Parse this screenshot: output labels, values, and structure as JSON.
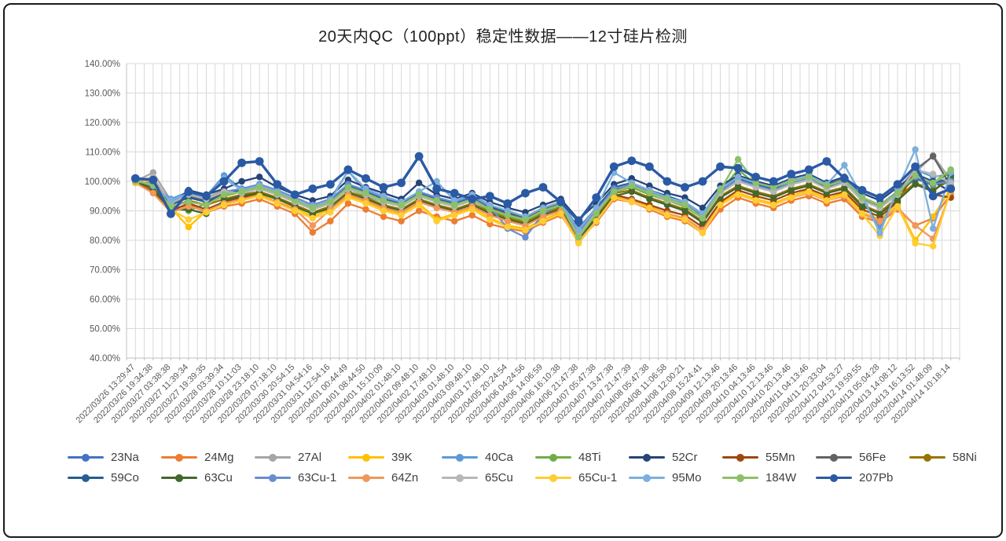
{
  "window": {
    "background": "#FFFFFF",
    "border_color": "#1A1A1A"
  },
  "chart_data": {
    "type": "line",
    "title": "20天内QC（100ppt）稳定性数据——12寸硅片检测",
    "xlabel": "",
    "ylabel": "",
    "ylim": [
      40,
      140
    ],
    "ytick_step": 10,
    "ytick_labels": [
      "140.00%",
      "130.00%",
      "120.00%",
      "110.00%",
      "100.00%",
      "90.00%",
      "80.00%",
      "70.00%",
      "60.00%",
      "50.00%",
      "40.00%"
    ],
    "grid": true,
    "grid_color": "#D9D9D9",
    "axis_color": "#BFBFBF",
    "tick_label_color": "#595959",
    "legend_position": "bottom",
    "categories": [
      "2022/03/26 13:29:47",
      "2022/03/26 19:34:38",
      "2022/03/27 03:38:38",
      "2022/03/27 11:39:34",
      "2022/03/27 19:39:35",
      "2022/03/28 03:39:34",
      "2022/03/28 10:11:03",
      "2022/03/28 23:18:10",
      "2022/03/29 07:18:10",
      "2022/03/30 20:54:15",
      "2022/03/31 04:54:16",
      "2022/03/31 12:54:16",
      "2022/04/01 00:44:49",
      "2022/04/01 08:44:50",
      "2022/04/01 15:10:09",
      "2022/04/02 01:48:10",
      "2022/04/02 09:48:10",
      "2022/04/02 17:48:10",
      "2022/04/03 01:48:10",
      "2022/04/03 09:48:10",
      "2022/04/03 17:48:10",
      "2022/04/05 20:24:54",
      "2022/04/06 04:24:56",
      "2022/04/06 14:06:59",
      "2022/04/06 16:10:38",
      "2022/04/06 21:47:38",
      "2022/04/07 05:47:38",
      "2022/04/07 13:47:38",
      "2022/04/07 21:47:39",
      "2022/04/08 05:47:38",
      "2022/04/08 11:06:58",
      "2022/04/08 12:00:21",
      "2022/04/08 15:24:41",
      "2022/04/09 12:13:46",
      "2022/04/09 20:13:46",
      "2022/04/10 04:13:46",
      "2022/04/10 12:13:46",
      "2022/04/10 20:13:46",
      "2022/04/11 04:13:46",
      "2022/04/11 20:33:04",
      "2022/04/12 04:53:27",
      "2022/04/12 19:59:55",
      "2022/04/13 05:04:28",
      "2022/04/13 14:08:12",
      "2022/04/13 16:13:52",
      "2022/04/14 01:48:09",
      "2022/04/14 10:18:14"
    ],
    "series": [
      {
        "name": "23Na",
        "color": "#4472C4",
        "values": [
          100.5,
          101,
          92.5,
          95,
          93.5,
          96,
          97,
          98.5,
          96.5,
          94,
          91.5,
          93.5,
          98.5,
          96.5,
          94,
          92.5,
          96,
          94,
          92.5,
          94.5,
          91,
          89,
          87.5,
          90.5,
          92.5,
          82,
          89.5,
          97,
          98.5,
          96,
          94,
          92,
          88,
          96.5,
          100.5,
          98.5,
          97,
          99.5,
          101,
          98.5,
          100,
          94,
          91.5,
          96,
          101.5,
          99,
          100.5
        ]
      },
      {
        "name": "24Mg",
        "color": "#ED7D31",
        "values": [
          99.5,
          97,
          90.5,
          92,
          89.5,
          91.5,
          92.5,
          94,
          91.5,
          89,
          82.7,
          86.5,
          92.5,
          90.5,
          88,
          86.5,
          90,
          88,
          86.5,
          88.5,
          85.5,
          84,
          83,
          86,
          88.5,
          80,
          86,
          94,
          93,
          90.5,
          88,
          86.5,
          82.5,
          90.5,
          94.5,
          92.5,
          91,
          93.5,
          95,
          92.5,
          94,
          88,
          86,
          90.5,
          85,
          87.5,
          95.5
        ]
      },
      {
        "name": "27Al",
        "color": "#A5A5A5",
        "values": [
          100,
          103,
          93.5,
          96,
          94.5,
          97,
          96,
          97.5,
          95.5,
          93,
          90.5,
          92.5,
          97.5,
          95.5,
          93,
          91.5,
          95,
          93,
          91.5,
          93.5,
          90,
          88.5,
          87,
          90,
          92,
          82,
          89.5,
          96.5,
          98,
          95.5,
          93.5,
          91.5,
          87.5,
          96,
          100.5,
          98,
          96.5,
          99,
          101,
          98,
          100,
          94,
          91.5,
          96,
          103,
          108.8,
          100.5
        ]
      },
      {
        "name": "39K",
        "color": "#FFC000",
        "values": [
          99.5,
          101.5,
          91,
          84.5,
          90,
          92.5,
          94,
          95.5,
          93,
          91,
          88,
          90.5,
          95,
          93,
          90.5,
          89,
          92.5,
          87,
          89,
          91,
          87.5,
          85,
          84,
          87,
          89.5,
          79.5,
          87,
          95,
          93.5,
          91.5,
          89,
          87.5,
          83,
          92.5,
          96,
          94,
          92.5,
          95,
          97,
          94,
          96,
          89.5,
          87,
          92,
          80,
          88,
          97.5
        ]
      },
      {
        "name": "40Ca",
        "color": "#5B9BD5",
        "values": [
          100.5,
          99,
          94,
          96.5,
          95,
          102,
          97.5,
          99,
          97,
          94.5,
          92,
          94,
          103.5,
          96.5,
          94.5,
          92.5,
          96,
          94,
          92,
          94.5,
          91,
          89,
          87.5,
          90.5,
          92.5,
          83,
          90.5,
          97.5,
          99.5,
          96.5,
          94,
          92.5,
          88.5,
          97,
          101,
          99,
          97,
          100,
          102,
          98.5,
          101,
          95,
          84,
          97,
          104,
          101.5,
          102.5
        ]
      },
      {
        "name": "48Ti",
        "color": "#70AD47",
        "values": [
          100,
          98.5,
          91,
          90,
          92.5,
          95,
          96.5,
          97.5,
          95.5,
          93,
          90.5,
          92.5,
          97.5,
          95,
          93,
          91.5,
          95,
          93,
          91.5,
          93.5,
          90,
          88,
          86.5,
          89.5,
          91.5,
          81.5,
          89,
          96.5,
          98,
          95.5,
          93.5,
          91.5,
          87.5,
          96.5,
          104,
          99,
          97.5,
          99.5,
          101,
          98,
          100,
          94,
          91,
          95.5,
          101,
          98.5,
          103.5
        ]
      },
      {
        "name": "52Cr",
        "color": "#264478",
        "values": [
          100.5,
          101,
          92,
          97,
          95.5,
          97.5,
          100,
          101.5,
          98,
          95.5,
          93.5,
          95,
          100.5,
          98,
          96,
          94,
          99.5,
          95.5,
          94,
          96,
          93,
          91,
          89.5,
          92,
          94,
          87,
          92.5,
          99,
          101,
          98.5,
          96,
          94.5,
          91,
          98.5,
          102,
          100,
          98.5,
          101,
          102.5,
          99.5,
          101.5,
          96,
          93.5,
          98,
          102.5,
          100,
          96.5
        ]
      },
      {
        "name": "55Mn",
        "color": "#9E480E",
        "values": [
          99.5,
          96.5,
          90,
          92.5,
          90.5,
          93,
          94.5,
          96,
          94,
          91.5,
          89,
          91,
          96,
          94,
          91.5,
          90,
          93.5,
          91.5,
          90,
          92,
          89,
          87,
          85.5,
          88.5,
          90.5,
          81,
          88,
          95.5,
          94,
          92,
          90,
          88.5,
          84.5,
          93,
          97,
          95,
          93.5,
          96,
          97.5,
          95,
          96.5,
          90.5,
          88,
          93,
          103.5,
          95.5,
          94.5
        ]
      },
      {
        "name": "56Fe",
        "color": "#636363",
        "values": [
          100,
          99.5,
          92.5,
          95,
          93.5,
          96,
          97,
          98,
          96,
          94,
          91.5,
          93.5,
          98,
          96,
          93.5,
          92,
          95.5,
          93.5,
          92,
          94,
          91,
          89,
          87.5,
          90.5,
          92.5,
          82.5,
          90,
          97,
          98.5,
          96,
          94,
          92,
          88,
          96.5,
          100.5,
          98.5,
          97,
          99,
          100.5,
          98,
          99.5,
          93.5,
          91,
          96,
          104,
          108.5,
          98.5
        ]
      },
      {
        "name": "58Ni",
        "color": "#997300",
        "values": [
          99.5,
          98,
          91,
          93.5,
          92,
          94,
          95.5,
          96.5,
          94.5,
          92,
          89.5,
          91.5,
          96.5,
          94.5,
          92,
          90.5,
          94,
          92,
          90.5,
          92.5,
          89.5,
          87.5,
          86,
          89,
          91,
          81.5,
          88.5,
          96,
          97,
          94.5,
          92.5,
          90.5,
          86.5,
          95,
          98.5,
          96.5,
          95,
          97.5,
          99,
          96.5,
          98,
          92,
          89.5,
          94.5,
          99.5,
          97,
          100.5
        ]
      },
      {
        "name": "59Co",
        "color": "#255E91",
        "values": [
          100.5,
          100,
          92,
          94.5,
          93,
          95.5,
          97,
          98.5,
          96.5,
          94,
          91.5,
          93.5,
          98.5,
          96.5,
          94,
          92.5,
          96,
          94,
          92.5,
          94.5,
          91.5,
          89.5,
          88,
          91,
          93,
          84,
          91,
          98,
          99.5,
          97,
          95,
          93,
          89,
          97.5,
          101,
          99,
          97.5,
          100,
          101.5,
          99,
          100.5,
          94.5,
          92,
          96.5,
          101,
          99,
          101.5
        ]
      },
      {
        "name": "63Cu",
        "color": "#43682B",
        "values": [
          100,
          97.5,
          90.5,
          90.5,
          89,
          93.5,
          95,
          96,
          94,
          91.5,
          89,
          91,
          96,
          94,
          91.5,
          90,
          93.5,
          91.5,
          90,
          92,
          89,
          87,
          85.5,
          88.5,
          90.5,
          80.5,
          87.5,
          95,
          96.5,
          94,
          92,
          90,
          86,
          94.5,
          98,
          96,
          94.5,
          97,
          98.5,
          96,
          97.5,
          91.5,
          89,
          93.5,
          99,
          96.5,
          102
        ]
      },
      {
        "name": "63Cu-1",
        "color": "#698ED0",
        "values": [
          100.5,
          99.5,
          93,
          95.5,
          94,
          96.5,
          97.5,
          99,
          97,
          94.5,
          92,
          94,
          99,
          97,
          94.5,
          93,
          96.5,
          94.5,
          93,
          95,
          91.5,
          84,
          81,
          89,
          92.5,
          82.5,
          90,
          97.5,
          99,
          96.5,
          94.5,
          92.5,
          88.5,
          97,
          100.5,
          98.5,
          97,
          99.5,
          101,
          98.5,
          100,
          94.5,
          92,
          96.5,
          101.5,
          99,
          100
        ]
      },
      {
        "name": "64Zn",
        "color": "#F1975A",
        "values": [
          99.5,
          96,
          89.5,
          91.5,
          90,
          92.5,
          94,
          95,
          93,
          90.5,
          85,
          90.5,
          95.5,
          93.5,
          91,
          89.5,
          93,
          91,
          89.5,
          91.5,
          88.5,
          86.5,
          85,
          88,
          90,
          79.5,
          86.5,
          94.5,
          93.5,
          91,
          89,
          87.5,
          83.5,
          92,
          95.5,
          93.5,
          92,
          94.5,
          96,
          93.5,
          95,
          89,
          86.5,
          91,
          85,
          80.5,
          96.5
        ]
      },
      {
        "name": "65Cu",
        "color": "#B7B7B7",
        "values": [
          100,
          101.5,
          92.5,
          95.5,
          94,
          96.5,
          96,
          97.5,
          95.5,
          93,
          90.5,
          92.5,
          97.5,
          95.5,
          93,
          91.5,
          95,
          93,
          91.5,
          93.5,
          90.5,
          88.5,
          87,
          90,
          92,
          81.5,
          89.5,
          96.5,
          98.5,
          96,
          93.5,
          92,
          87.5,
          96,
          100,
          98,
          96.5,
          99,
          100.5,
          97.5,
          99.5,
          93.5,
          91,
          95.5,
          104,
          102.5,
          99.5
        ]
      },
      {
        "name": "65Cu-1",
        "color": "#FFCD33",
        "values": [
          99.5,
          100.5,
          90.5,
          87,
          89.5,
          92,
          93.5,
          95,
          92.5,
          90,
          87.5,
          89.5,
          94.5,
          92.5,
          90,
          88.5,
          92,
          86.5,
          88.5,
          90.5,
          87,
          84.5,
          83.5,
          86.5,
          89,
          79,
          86.5,
          94.5,
          93,
          91,
          88.5,
          87,
          82.5,
          92,
          95.5,
          93.5,
          92,
          94.5,
          96.5,
          93.5,
          95.5,
          89,
          81.5,
          91.5,
          79,
          78,
          97
        ]
      },
      {
        "name": "95Mo",
        "color": "#7CAFDD",
        "values": [
          100.5,
          98.5,
          93.5,
          96,
          94.5,
          101,
          97,
          98.5,
          96.5,
          94,
          91.5,
          93.5,
          103.5,
          97.5,
          95,
          93,
          96.5,
          100,
          93.5,
          95.5,
          92,
          90,
          88,
          91,
          93,
          83.5,
          91,
          103,
          99.5,
          97,
          94.5,
          93,
          89,
          97.5,
          101.5,
          99.5,
          98,
          100.5,
          102,
          99,
          105.5,
          95,
          82.5,
          97.5,
          110.8,
          84,
          103
        ]
      },
      {
        "name": "184W",
        "color": "#8CC168",
        "values": [
          100,
          99,
          91.5,
          93,
          92,
          95.5,
          96.5,
          98,
          96,
          93.5,
          91,
          93,
          98,
          96,
          93.5,
          92,
          95.5,
          93.5,
          92,
          94,
          90.5,
          88.5,
          87,
          90,
          92,
          81,
          89,
          96.5,
          98.5,
          96,
          94,
          92,
          87.5,
          97,
          107.5,
          99.5,
          98,
          100,
          101.5,
          98.5,
          100.5,
          94.5,
          92,
          96,
          102,
          99.5,
          104
        ]
      },
      {
        "name": "207Pb",
        "color": "#2B5AA5",
        "thick": true,
        "values": [
          101,
          100.5,
          89,
          96.5,
          95,
          100,
          106.3,
          106.8,
          99,
          95.5,
          97.5,
          99,
          104,
          101,
          98,
          99.5,
          108.5,
          97.5,
          96,
          94,
          95,
          92.5,
          96,
          98,
          93,
          86.5,
          94.5,
          105,
          107,
          105,
          100,
          98,
          100,
          105,
          104.5,
          101.5,
          100,
          102.5,
          104,
          106.8,
          101,
          97,
          94.5,
          99,
          105,
          95,
          97.5
        ]
      }
    ]
  }
}
